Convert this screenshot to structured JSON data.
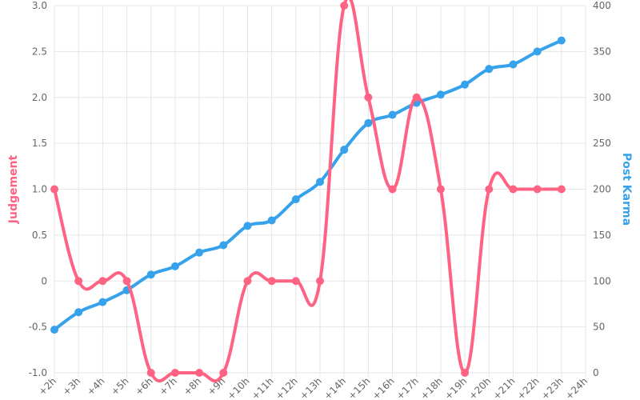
{
  "colors": {
    "judgement": "#ff6384",
    "karma": "#36a2eb",
    "grid": "#e5e5e5",
    "tick_text": "#666666"
  },
  "chart_data": {
    "type": "line",
    "x_tick_labels": [
      "+2h",
      "+3h",
      "+4h",
      "+5h",
      "+6h",
      "+7h",
      "+8h",
      "+9h",
      "+10h",
      "+11h",
      "+12h",
      "+13h",
      "+14h",
      "+15h",
      "+16h",
      "+17h",
      "+18h",
      "+19h",
      "+20h",
      "+21h",
      "+22h",
      "+23h",
      "+24h"
    ],
    "x_hours": [
      2,
      3,
      4,
      5,
      6,
      7,
      8,
      9,
      10,
      11,
      12,
      13,
      14,
      15,
      16,
      17,
      18,
      19,
      20,
      21,
      22,
      23
    ],
    "xlim": [
      2,
      24
    ],
    "grid": true,
    "series": [
      {
        "name": "Judgement",
        "axis": "left",
        "color": "#ff6384",
        "values": [
          1,
          0,
          0,
          0,
          -1,
          -1,
          -1,
          -1,
          0,
          0,
          0,
          0,
          3,
          2,
          1,
          2,
          1,
          -1,
          1,
          1,
          1,
          1
        ]
      },
      {
        "name": "Post Karma",
        "axis": "right",
        "color": "#36a2eb",
        "values": [
          47,
          66,
          77,
          90,
          107,
          116,
          131,
          139,
          160,
          166,
          189,
          208,
          243,
          272,
          281,
          294,
          303,
          314,
          331,
          336,
          350,
          362
        ]
      }
    ],
    "y_left": {
      "label": "Judgement",
      "min": -1,
      "max": 3,
      "ticks": [
        "3.0",
        "2.5",
        "2.0",
        "1.5",
        "1.0",
        "0.5",
        "0",
        "-0.5",
        "-1.0"
      ]
    },
    "y_right": {
      "label": "Post Karma",
      "min": 0,
      "max": 400,
      "ticks": [
        "400",
        "350",
        "300",
        "250",
        "200",
        "150",
        "100",
        "50",
        "0"
      ]
    }
  }
}
